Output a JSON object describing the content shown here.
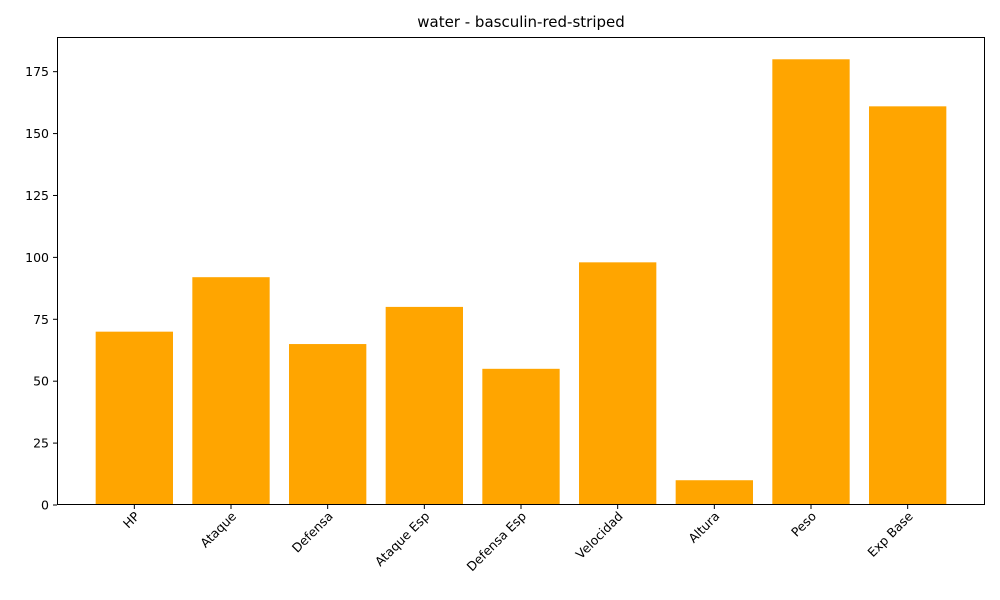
{
  "chart_data": {
    "type": "bar",
    "title": "water - basculin-red-striped",
    "xlabel": "",
    "ylabel": "",
    "categories": [
      "HP",
      "Ataque",
      "Defensa",
      "Ataque Esp",
      "Defensa Esp",
      "Velocidad",
      "Altura",
      "Peso",
      "Exp Base"
    ],
    "values": [
      70,
      92,
      65,
      80,
      55,
      98,
      10,
      180,
      161
    ],
    "ylim": [
      0,
      189
    ],
    "yticks": [
      0,
      25,
      50,
      75,
      100,
      125,
      150,
      175
    ],
    "bar_color": "#ffa500",
    "grid": false,
    "legend": "none"
  }
}
